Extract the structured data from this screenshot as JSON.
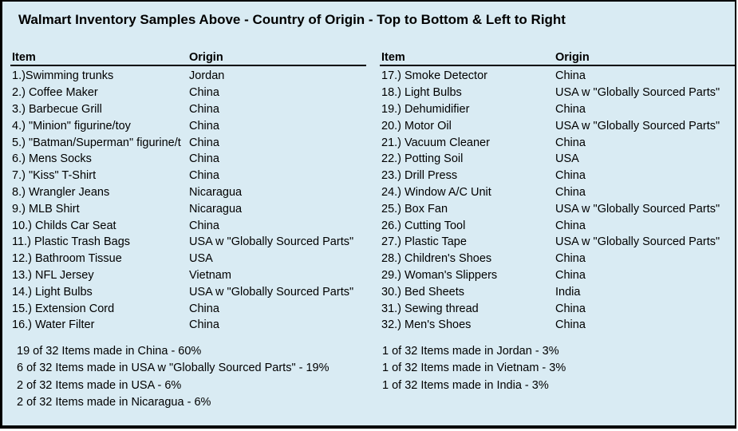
{
  "title": "Walmart Inventory Samples Above - Country of Origin - Top to Bottom & Left to Right",
  "left_table": {
    "item_header": "Item",
    "origin_header": "Origin",
    "rows": [
      {
        "item": "1.)Swimming trunks",
        "origin": "Jordan"
      },
      {
        "item": "2.) Coffee Maker",
        "origin": "China"
      },
      {
        "item": "3.) Barbecue Grill",
        "origin": "China"
      },
      {
        "item": "4.) \"Minion\" figurine/toy",
        "origin": "China"
      },
      {
        "item": "5.) \"Batman/Superman\" figurine/t",
        "origin": "China"
      },
      {
        "item": "6.) Mens Socks",
        "origin": "China"
      },
      {
        "item": "7.) \"Kiss\" T-Shirt",
        "origin": "China"
      },
      {
        "item": "8.) Wrangler Jeans",
        "origin": "Nicaragua"
      },
      {
        "item": "9.) MLB Shirt",
        "origin": "Nicaragua"
      },
      {
        "item": "10.) Childs Car Seat",
        "origin": "China"
      },
      {
        "item": "11.) Plastic Trash Bags",
        "origin": "USA w \"Globally Sourced Parts\""
      },
      {
        "item": "12.) Bathroom Tissue",
        "origin": "USA"
      },
      {
        "item": "13.) NFL Jersey",
        "origin": "Vietnam"
      },
      {
        "item": "14.) Light Bulbs",
        "origin": "USA w \"Globally Sourced Parts\""
      },
      {
        "item": "15.) Extension Cord",
        "origin": "China"
      },
      {
        "item": "16.) Water Filter",
        "origin": "China"
      }
    ]
  },
  "right_table": {
    "item_header": "Item",
    "origin_header": "Origin",
    "rows": [
      {
        "item": "17.) Smoke Detector",
        "origin": "China"
      },
      {
        "item": "18.) Light Bulbs",
        "origin": "USA w \"Globally Sourced Parts\""
      },
      {
        "item": "19.) Dehumidifier",
        "origin": "China"
      },
      {
        "item": "20.) Motor Oil",
        "origin": "USA w \"Globally Sourced Parts\""
      },
      {
        "item": "21.) Vacuum Cleaner",
        "origin": "China"
      },
      {
        "item": "22.) Potting Soil",
        "origin": "USA"
      },
      {
        "item": "23.) Drill Press",
        "origin": "China"
      },
      {
        "item": "24.) Window A/C Unit",
        "origin": "China"
      },
      {
        "item": "25.) Box Fan",
        "origin": "USA w \"Globally Sourced Parts\""
      },
      {
        "item": "26.) Cutting Tool",
        "origin": "China"
      },
      {
        "item": "27.) Plastic Tape",
        "origin": "USA w \"Globally Sourced Parts\""
      },
      {
        "item": "28.) Children's Shoes",
        "origin": "China"
      },
      {
        "item": "29.) Woman's Slippers",
        "origin": "China"
      },
      {
        "item": "30.) Bed Sheets",
        "origin": "India"
      },
      {
        "item": "31.) Sewing thread",
        "origin": "China"
      },
      {
        "item": "32.) Men's Shoes",
        "origin": "China"
      }
    ]
  },
  "summary_left": {
    "lines": [
      "19 of 32 Items made in China - 60%",
      "6 of 32 Items made in USA w \"Globally Sourced Parts\" - 19%",
      "2 of 32 Items made in USA - 6%",
      "2 of 32 Items made in Nicaragua - 6%"
    ]
  },
  "summary_right": {
    "lines": [
      "1 of 32 Items made in Jordan - 3%",
      "1 of 32 Items made in Vietnam - 3%",
      "1 of 32 Items made in India - 3%"
    ]
  },
  "colors": {
    "background": "#d9ebf3",
    "border": "#000000",
    "text": "#000000"
  }
}
